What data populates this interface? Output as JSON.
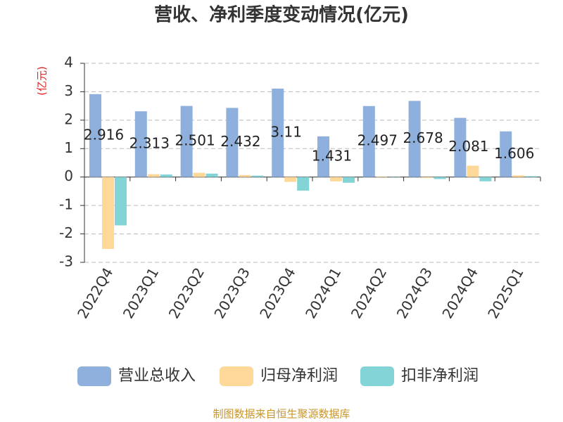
{
  "chart_data": {
    "type": "bar",
    "title": "营收、净利季度变动情况(亿元)",
    "y_label": "(亿元)",
    "source": "制图数据来自恒生聚源数据库",
    "categories": [
      "2022Q4",
      "2023Q1",
      "2023Q2",
      "2023Q3",
      "2023Q4",
      "2024Q1",
      "2024Q2",
      "2024Q3",
      "2024Q4",
      "2025Q1"
    ],
    "series": [
      {
        "name": "营业总收入",
        "color": "#8fb0dd",
        "values": [
          2.916,
          2.313,
          2.501,
          2.432,
          3.11,
          1.431,
          2.497,
          2.678,
          2.081,
          1.606
        ]
      },
      {
        "name": "归母净利润",
        "color": "#fdd898",
        "values": [
          -2.53,
          0.1,
          0.15,
          0.07,
          -0.17,
          -0.15,
          0.02,
          -0.03,
          0.4,
          0.06
        ]
      },
      {
        "name": "扣非净利润",
        "color": "#82d4d6",
        "values": [
          -1.7,
          0.09,
          0.12,
          0.05,
          -0.48,
          -0.2,
          0.01,
          -0.07,
          -0.15,
          0.03
        ]
      }
    ],
    "labeled_series": 0,
    "ylim": [
      -3,
      4
    ],
    "yticks": [
      -3,
      -2,
      -1,
      0,
      1,
      2,
      3,
      4
    ],
    "grid": true
  }
}
